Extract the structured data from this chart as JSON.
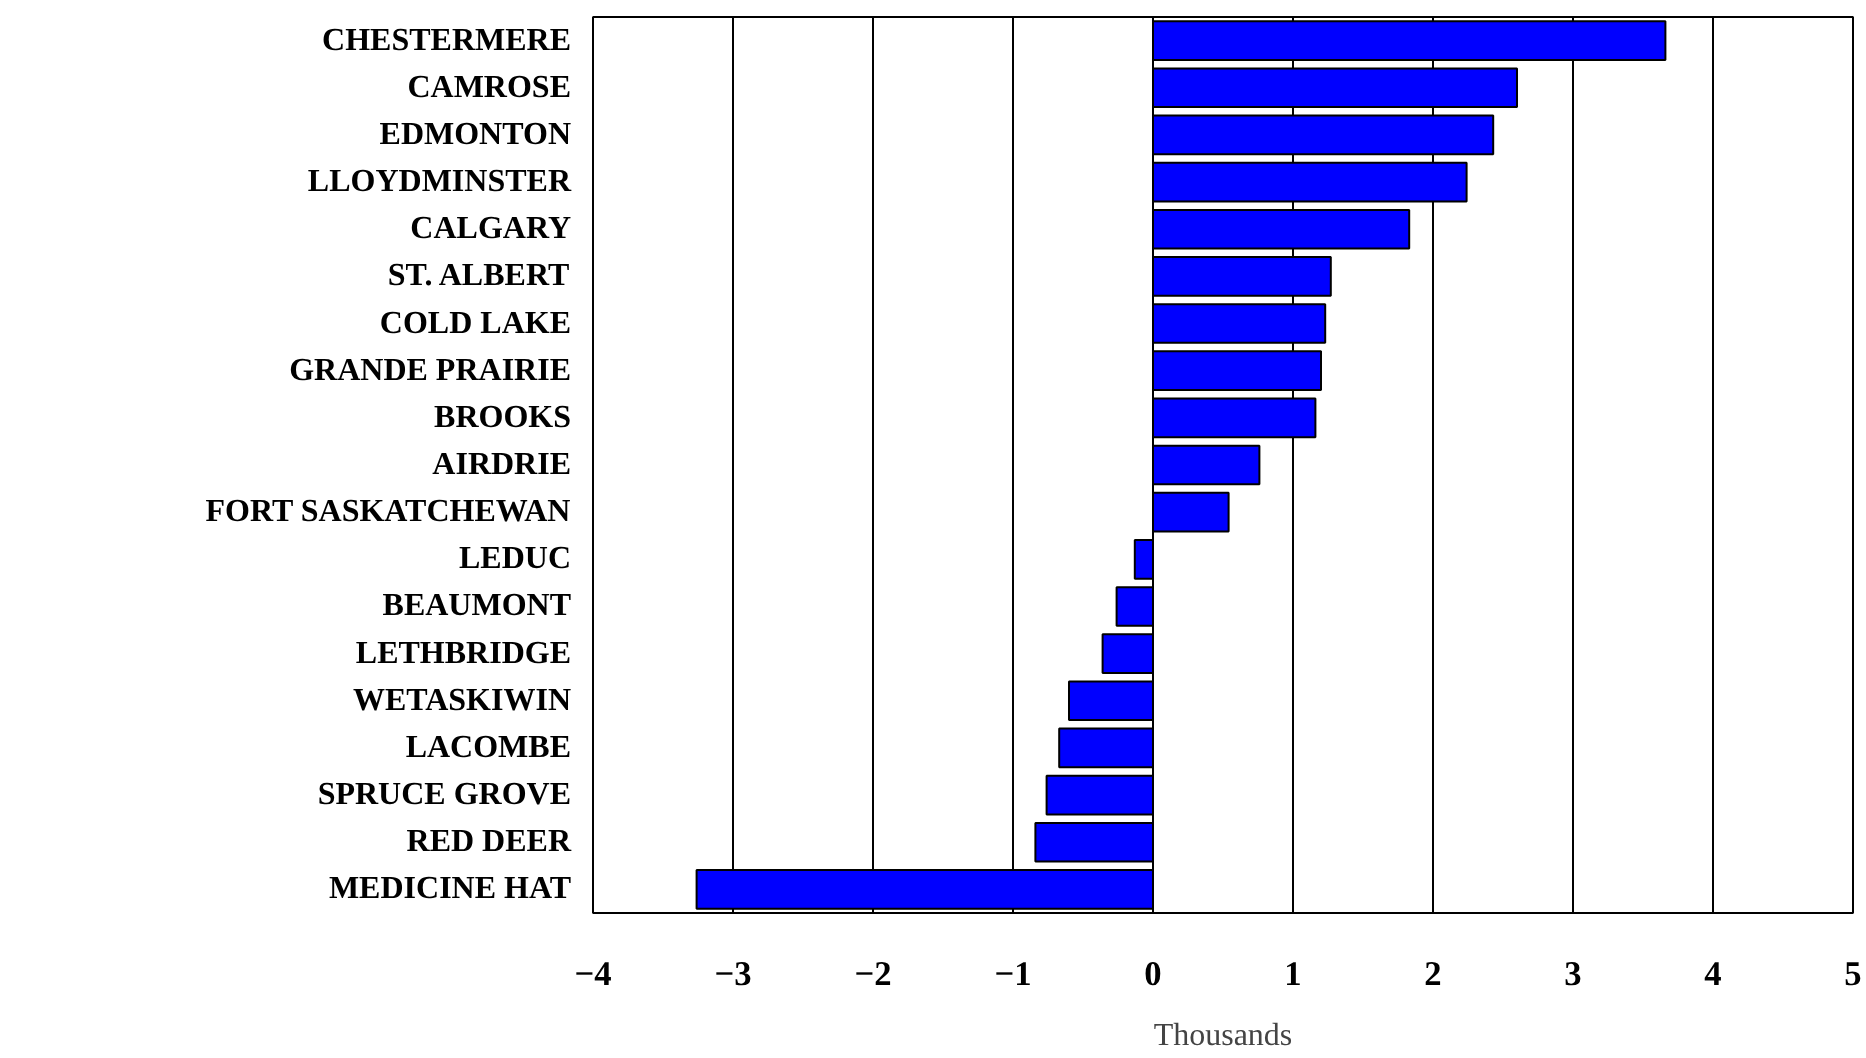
{
  "chart_data": {
    "type": "bar",
    "orientation": "horizontal",
    "xlabel": "Thousands",
    "categories": [
      "CHESTERMERE",
      "CAMROSE",
      "EDMONTON",
      "LLOYDMINSTER",
      "CALGARY",
      "ST. ALBERT",
      "COLD LAKE",
      "GRANDE PRAIRIE",
      "BROOKS",
      "AIRDRIE",
      "FORT SASKATCHEWAN",
      "LEDUC",
      "BEAUMONT",
      "LETHBRIDGE",
      "WETASKIWIN",
      "LACOMBE",
      "SPRUCE GROVE",
      "RED DEER",
      "MEDICINE HAT"
    ],
    "values": [
      3.66,
      2.6,
      2.43,
      2.24,
      1.83,
      1.27,
      1.23,
      1.2,
      1.16,
      0.76,
      0.54,
      -0.13,
      -0.26,
      -0.36,
      -0.6,
      -0.67,
      -0.76,
      -0.84,
      -3.26
    ],
    "color": "#0000ff",
    "xlim": [
      -4,
      5
    ],
    "xticks": [
      -4,
      -3,
      -2,
      -1,
      0,
      1,
      2,
      3,
      4,
      5
    ],
    "grid": "x"
  }
}
